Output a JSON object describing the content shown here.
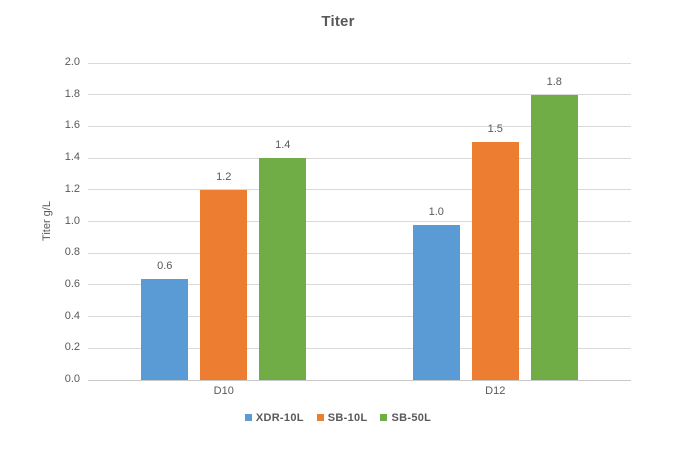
{
  "chart_data": {
    "type": "bar",
    "title": "Titer",
    "ylabel": "Titer g/L",
    "xlabel": "",
    "categories": [
      "D10",
      "D12"
    ],
    "series": [
      {
        "name": "XDR-10L",
        "color": "#5B9BD5",
        "values": [
          0.64,
          0.98
        ],
        "data_labels": [
          "0.6",
          "1.0"
        ]
      },
      {
        "name": "SB-10L",
        "color": "#ED7D31",
        "values": [
          1.2,
          1.5
        ],
        "data_labels": [
          "1.2",
          "1.5"
        ]
      },
      {
        "name": "SB-50L",
        "color": "#70AD47",
        "values": [
          1.4,
          1.8
        ],
        "data_labels": [
          "1.4",
          "1.8"
        ]
      }
    ],
    "ylim": [
      0,
      2.0
    ],
    "ytick_step": 0.2,
    "ytick_labels": [
      "0.0",
      "0.2",
      "0.4",
      "0.6",
      "0.8",
      "1.0",
      "1.2",
      "1.4",
      "1.6",
      "1.8",
      "2.0"
    ],
    "grid": true,
    "legend_position": "bottom",
    "legend_entries": [
      "XDR-10L",
      "SB-10L",
      "SB-50L"
    ]
  },
  "styles": {
    "grid_color": "#D9D9D9",
    "axis_color": "#C9C9C9",
    "text_color": "#595959",
    "background": "#FFFFFF"
  }
}
